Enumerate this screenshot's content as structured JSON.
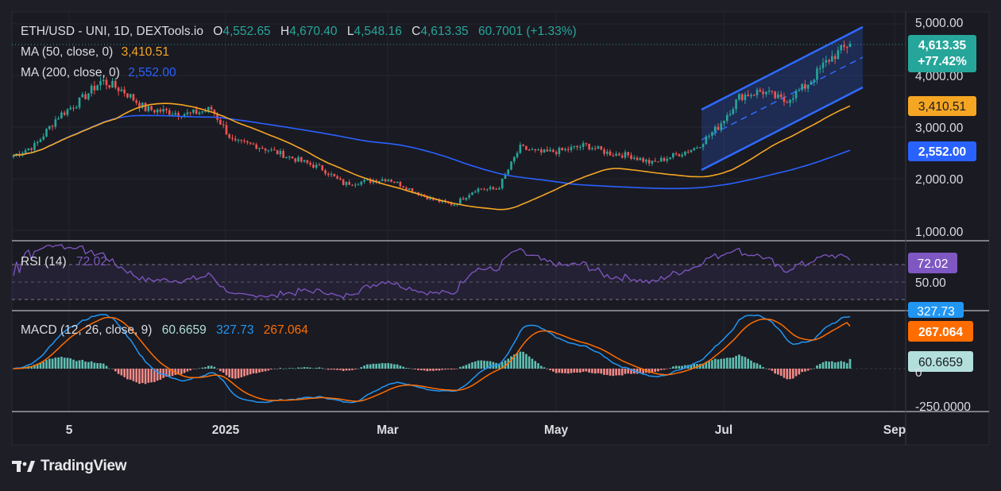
{
  "header": {
    "symbol": "ETH/USD - UNI, 1D, DEXTools.io",
    "o_label": "O",
    "o_value": "4,552.65",
    "h_label": "H",
    "h_value": "4,670.40",
    "l_label": "L",
    "l_value": "4,548.16",
    "c_label": "C",
    "c_value": "4,613.35",
    "change": "60.7001 (+1.33%)",
    "ma50_label": "MA (50, close, 0)",
    "ma50_value": "3,410.51",
    "ma200_label": "MA (200, close, 0)",
    "ma200_value": "2,552.00"
  },
  "price_axis": {
    "ticks": [
      "5,000.00",
      "4,000.00",
      "3,000.00",
      "2,000.00",
      "1,000.00"
    ],
    "last_price_badge": "4,613.35",
    "change_badge": "+77.42%",
    "ma50_badge": "3,410.51",
    "ma200_badge": "2,552.00"
  },
  "rsi": {
    "label": "RSI (14)",
    "value": "72.02",
    "badge": "72.02",
    "mid_tick": "50.00"
  },
  "macd": {
    "label": "MACD (12, 26, close, 9)",
    "hist_value": "60.6659",
    "macd_value": "327.73",
    "signal_value": "267.064",
    "badge_macd": "327.73",
    "badge_signal": "267.064",
    "badge_hist": "60.6659",
    "tick_zero": "0",
    "tick_low": "-250.0000"
  },
  "time_axis": {
    "labels": [
      "5",
      "2025",
      "Mar",
      "May",
      "Jul",
      "Sep"
    ]
  },
  "branding": {
    "name": "TradingView"
  },
  "colors": {
    "background": "#1e1e26",
    "up": "#26a69a",
    "down": "#ef5350",
    "ma50": "#f5a623",
    "ma200": "#2962ff",
    "rsi": "#7e57c2",
    "macd": "#2196f3",
    "signal": "#ff6d00",
    "channel": "#2f6bff"
  },
  "chart_data": {
    "type": "candlestick",
    "title": "ETH/USD - UNI, 1D, DEXTools.io",
    "price_range": [
      750,
      5100
    ],
    "x_range": [
      "2024-11",
      "2025-09"
    ],
    "series": [
      {
        "name": "ETH/USD close (approx. weekly)",
        "values": [
          2450,
          2650,
          3200,
          3500,
          3900,
          3700,
          3350,
          3300,
          3250,
          3350,
          2700,
          2650,
          2500,
          2350,
          2200,
          1900,
          1950,
          2000,
          1800,
          1600,
          1500,
          1800,
          1800,
          2600,
          2500,
          2550,
          2650,
          2500,
          2450,
          2300,
          2450,
          2600,
          3000,
          3600,
          3700,
          3500,
          3800,
          4300,
          4613
        ]
      },
      {
        "name": "MA (50, close, 0)",
        "last": 3410.51
      },
      {
        "name": "MA (200, close, 0)",
        "last": 2552.0
      }
    ],
    "last": {
      "open": 4552.65,
      "high": 4670.4,
      "low": 4548.16,
      "close": 4613.35,
      "change": 60.7001,
      "change_pct": 1.33,
      "total_change_pct": 77.42
    },
    "rsi": {
      "period": 14,
      "last": 72.02,
      "levels": [
        70,
        50,
        30
      ],
      "range": [
        0,
        100
      ]
    },
    "macd": {
      "fast": 12,
      "slow": 26,
      "signal": 9,
      "macd": 327.73,
      "signal_line": 267.064,
      "histogram": 60.6659,
      "range": [
        -250,
        350
      ]
    },
    "x_ticks": [
      "5",
      "2025",
      "Mar",
      "May",
      "Jul",
      "Sep"
    ]
  }
}
